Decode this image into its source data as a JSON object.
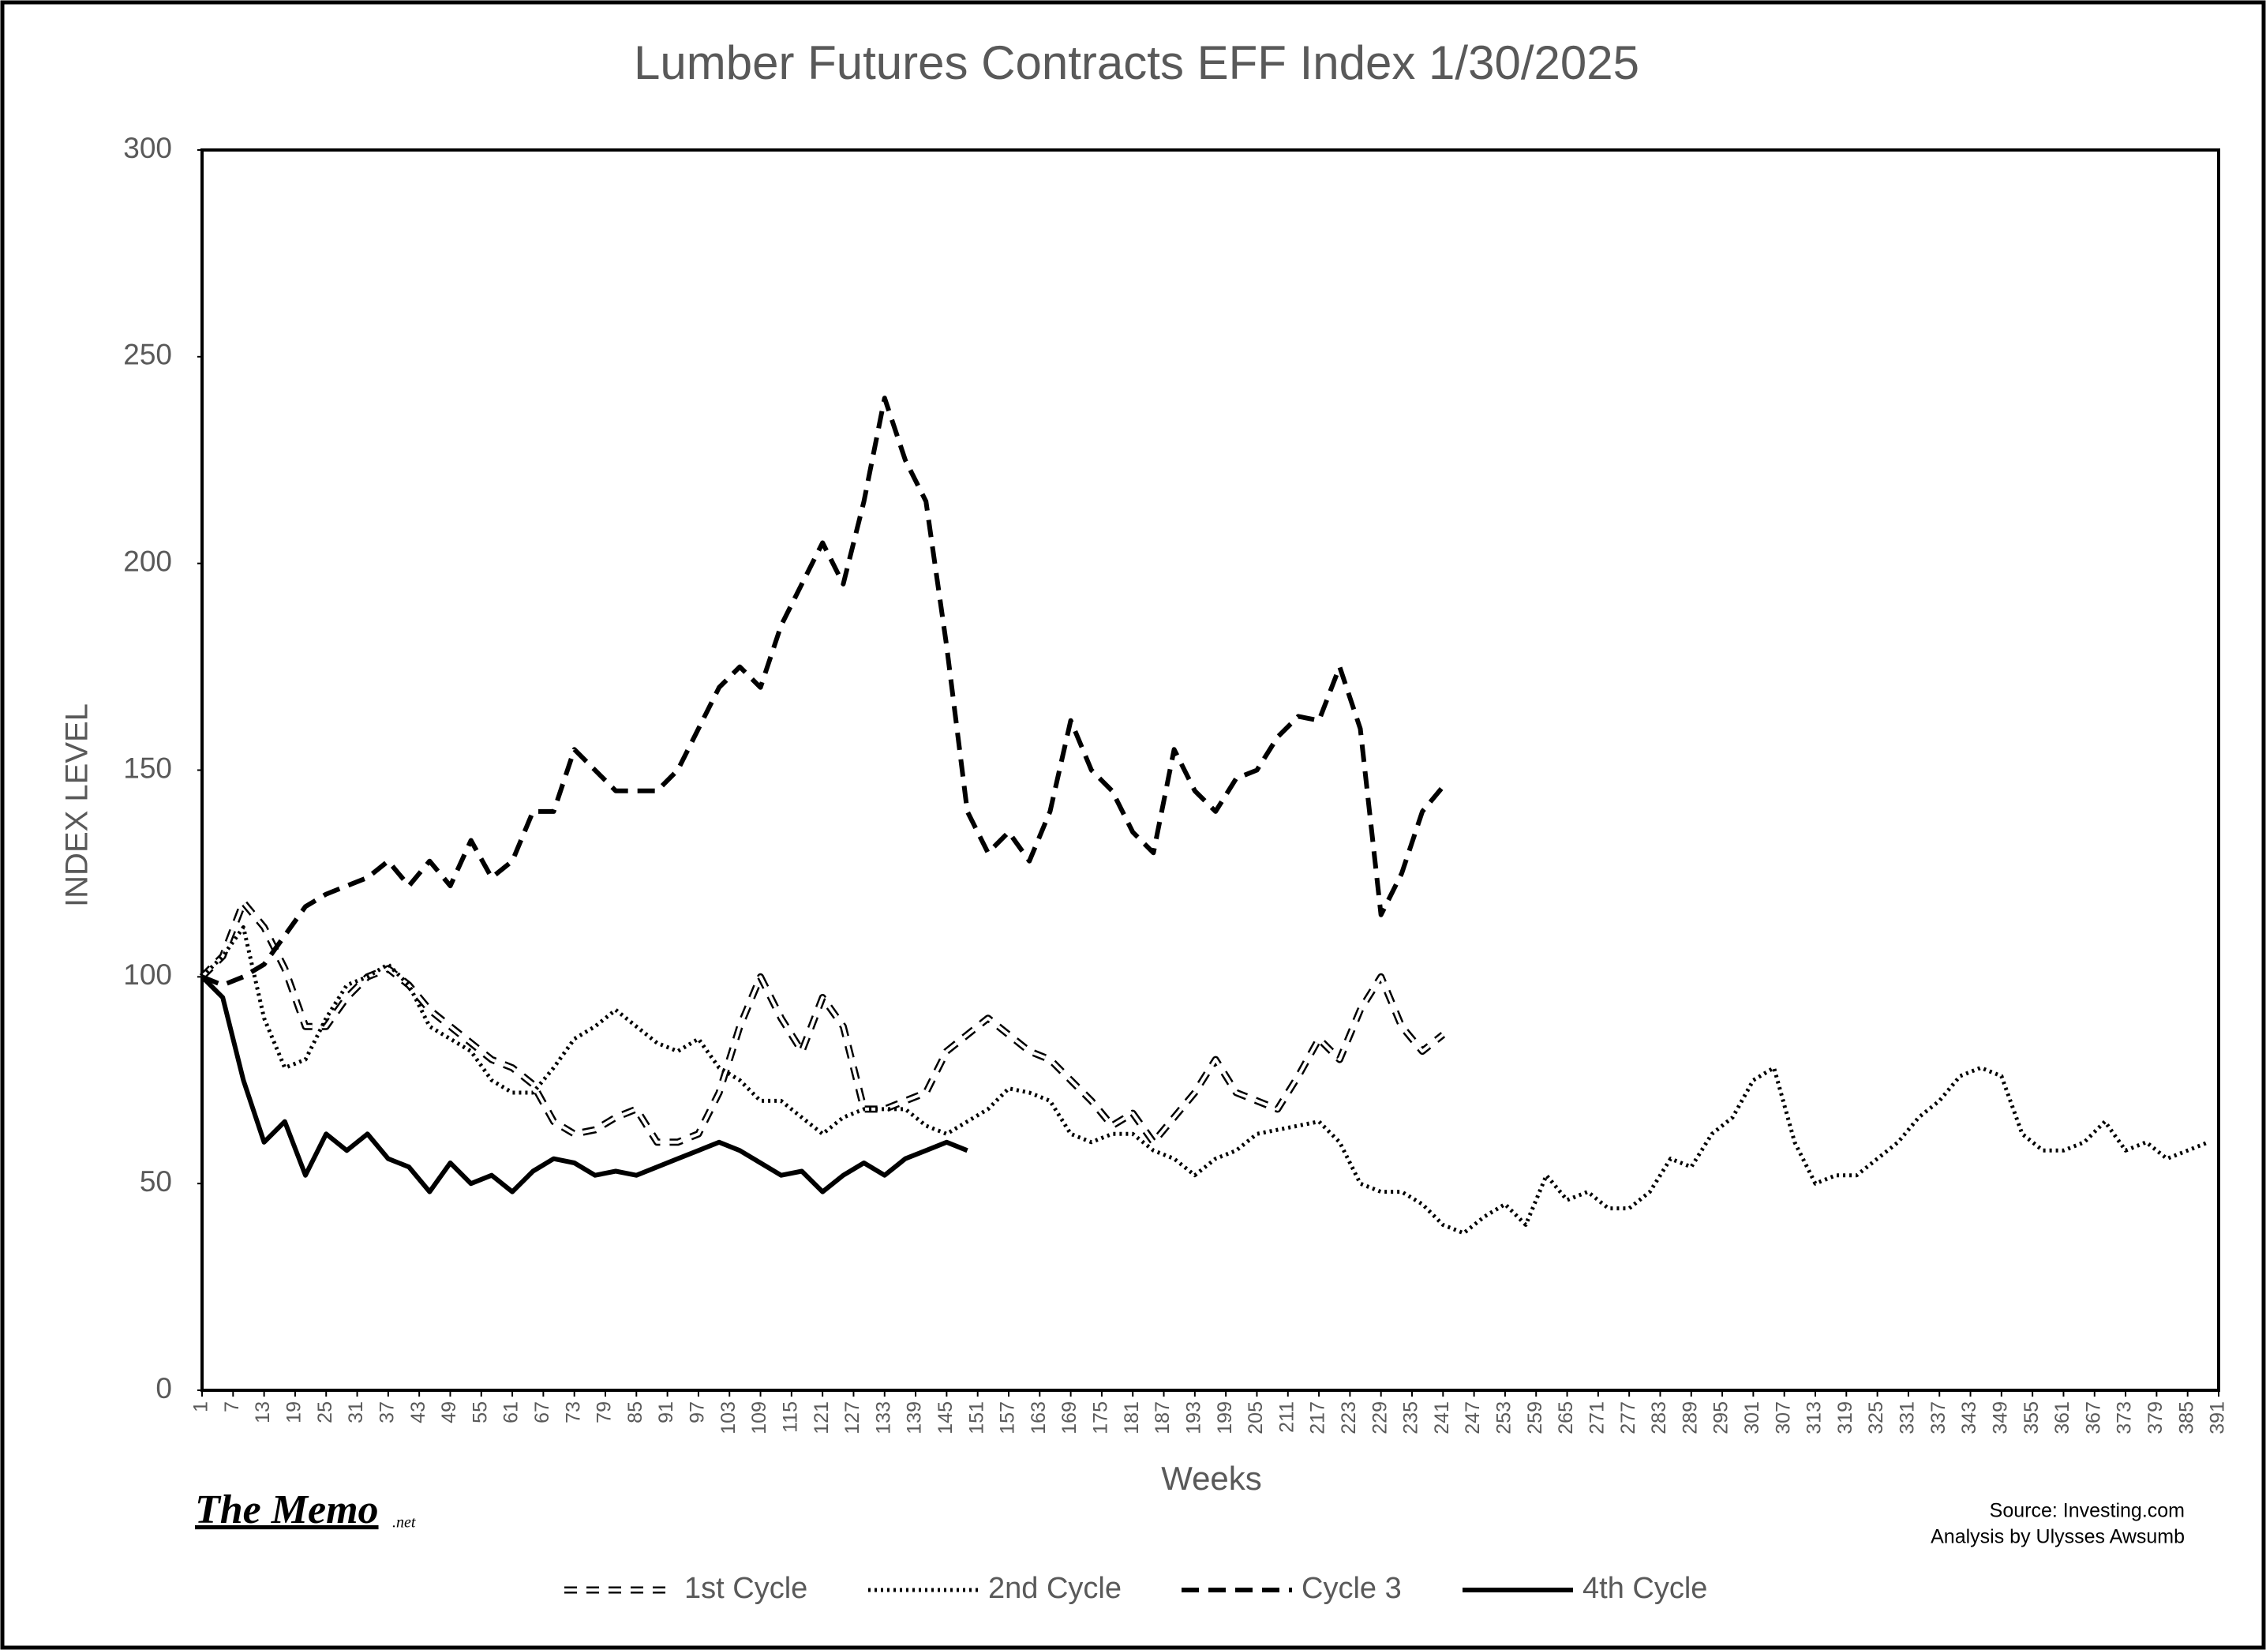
{
  "chart_data": {
    "type": "line",
    "title": "Lumber Futures Contracts  EFF Index 1/30/2025",
    "x_label": "Weeks",
    "y_label": "INDEX LEVEL",
    "annotations": {
      "brand": "The Memo",
      "brand_suffix": ".net",
      "source": "Source: Investing.com",
      "analysis": "Analysis by Ulysses Awsumb"
    },
    "xlim": [
      1,
      391
    ],
    "ylim": [
      0,
      300
    ],
    "yticks": [
      0,
      50,
      100,
      150,
      200,
      250,
      300
    ],
    "xticks": [
      1,
      7,
      13,
      19,
      25,
      31,
      37,
      43,
      49,
      55,
      61,
      67,
      73,
      79,
      85,
      91,
      97,
      103,
      109,
      115,
      121,
      127,
      133,
      139,
      145,
      151,
      157,
      163,
      169,
      175,
      181,
      187,
      193,
      199,
      205,
      211,
      217,
      223,
      229,
      235,
      241,
      247,
      253,
      259,
      265,
      271,
      277,
      283,
      289,
      295,
      301,
      307,
      313,
      319,
      325,
      331,
      337,
      343,
      349,
      355,
      361,
      367,
      373,
      379,
      385,
      391
    ],
    "legend": "bottom",
    "x": [
      1,
      5,
      9,
      13,
      17,
      21,
      25,
      29,
      33,
      37,
      41,
      45,
      49,
      53,
      57,
      61,
      65,
      69,
      73,
      77,
      81,
      85,
      89,
      93,
      97,
      101,
      105,
      109,
      113,
      117,
      121,
      125,
      129,
      133,
      137,
      141,
      145,
      149,
      153,
      157,
      161,
      165,
      169,
      173,
      177,
      181,
      185,
      189,
      193,
      197,
      201,
      205,
      209,
      213,
      217,
      221,
      225,
      229,
      233,
      237,
      241,
      245,
      249,
      253,
      257,
      261,
      265,
      269,
      273,
      277,
      281,
      285,
      289,
      293,
      297,
      301,
      305,
      309,
      313,
      317,
      321,
      325,
      329,
      333,
      337,
      341,
      345,
      349,
      353,
      357,
      361,
      365,
      369,
      373,
      377,
      381,
      385,
      389
    ],
    "series": [
      {
        "name": "1st Cycle",
        "color": "#000000",
        "line_style": "hollow-dash",
        "values": [
          100,
          105,
          118,
          112,
          102,
          88,
          88,
          95,
          100,
          102,
          98,
          92,
          88,
          84,
          80,
          78,
          74,
          65,
          62,
          63,
          66,
          68,
          60,
          60,
          62,
          72,
          88,
          100,
          90,
          82,
          95,
          88,
          68,
          68,
          70,
          72,
          82,
          86,
          90,
          86,
          82,
          80,
          75,
          70,
          64,
          67,
          60,
          66,
          72,
          80,
          72,
          70,
          68,
          76,
          85,
          80,
          92,
          100,
          88,
          82,
          86,
          null,
          null,
          null,
          null,
          null,
          null,
          null,
          null,
          null,
          null,
          null,
          null,
          null,
          null,
          null,
          null,
          null,
          null,
          null,
          null,
          null,
          null,
          null,
          null,
          null,
          null,
          null,
          null,
          null,
          null,
          null,
          null,
          null,
          null,
          null,
          null,
          null
        ]
      },
      {
        "name": "2nd Cycle",
        "color": "#000000",
        "line_style": "dotted",
        "values": [
          100,
          105,
          112,
          90,
          78,
          80,
          90,
          98,
          100,
          103,
          98,
          88,
          85,
          82,
          75,
          72,
          72,
          78,
          85,
          88,
          92,
          88,
          84,
          82,
          85,
          78,
          75,
          70,
          70,
          66,
          62,
          66,
          68,
          68,
          68,
          64,
          62,
          65,
          68,
          73,
          72,
          70,
          62,
          60,
          62,
          62,
          58,
          56,
          52,
          56,
          58,
          62,
          63,
          64,
          65,
          60,
          50,
          48,
          48,
          45,
          40,
          38,
          42,
          45,
          40,
          52,
          46,
          48,
          44,
          44,
          48,
          56,
          54,
          62,
          66,
          75,
          78,
          60,
          50,
          52,
          52,
          56,
          60,
          66,
          70,
          76,
          78,
          76,
          62,
          58,
          58,
          60,
          65,
          58,
          60,
          56,
          58,
          60
        ]
      },
      {
        "name": "Cycle 3",
        "color": "#000000",
        "line_style": "dashed",
        "values": [
          100,
          98,
          100,
          103,
          110,
          117,
          120,
          122,
          124,
          128,
          122,
          128,
          122,
          133,
          124,
          128,
          140,
          140,
          155,
          150,
          145,
          145,
          145,
          150,
          160,
          170,
          175,
          170,
          185,
          195,
          205,
          195,
          215,
          240,
          225,
          215,
          180,
          140,
          130,
          135,
          128,
          140,
          162,
          150,
          145,
          135,
          130,
          155,
          145,
          140,
          148,
          150,
          158,
          163,
          162,
          175,
          160,
          115,
          125,
          140,
          146,
          null,
          null,
          null,
          null,
          null,
          null,
          null,
          null,
          null,
          null,
          null,
          null,
          null,
          null,
          null,
          null,
          null,
          null,
          null,
          null,
          null,
          null,
          null,
          null,
          null,
          null,
          null,
          null,
          null,
          null,
          null,
          null,
          null,
          null,
          null,
          null,
          null
        ]
      },
      {
        "name": "4th Cycle",
        "color": "#000000",
        "line_style": "solid",
        "values": [
          100,
          95,
          75,
          60,
          65,
          52,
          62,
          58,
          62,
          56,
          54,
          48,
          55,
          50,
          52,
          48,
          53,
          56,
          55,
          52,
          53,
          52,
          54,
          56,
          58,
          60,
          58,
          55,
          52,
          53,
          48,
          52,
          55,
          52,
          56,
          58,
          60,
          58,
          null,
          null,
          null,
          null,
          null,
          null,
          null,
          null,
          null,
          null,
          null,
          null,
          null,
          null,
          null,
          null,
          null,
          null,
          null,
          null,
          null,
          null,
          null,
          null,
          null,
          null,
          null,
          null,
          null,
          null,
          null,
          null,
          null,
          null,
          null,
          null,
          null,
          null,
          null,
          null,
          null,
          null,
          null,
          null,
          null,
          null,
          null,
          null,
          null,
          null,
          null,
          null,
          null,
          null,
          null,
          null,
          null,
          null,
          null,
          null
        ]
      }
    ]
  }
}
